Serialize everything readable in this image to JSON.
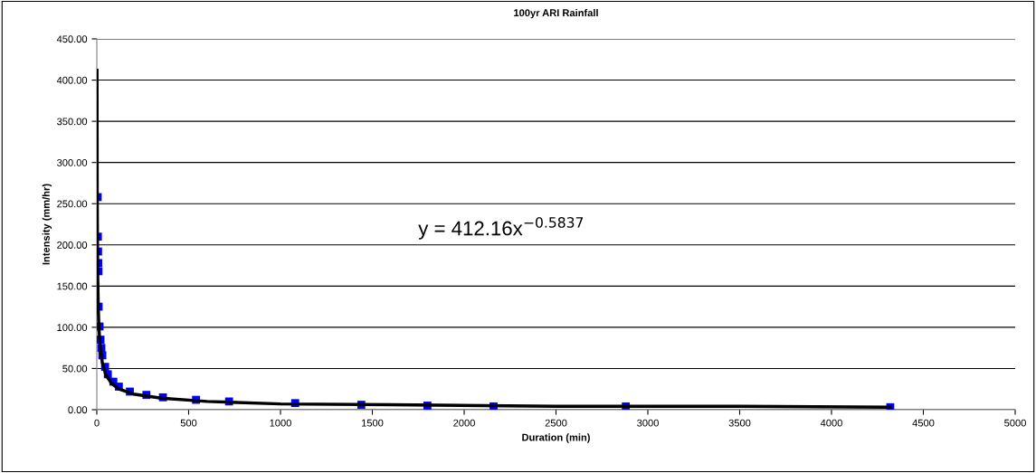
{
  "chart_data": {
    "type": "scatter",
    "title": "100yr ARI Rainfall",
    "xlabel": "Duration (min)",
    "ylabel": "Intensity (mm/hr)",
    "xlim": [
      0,
      5000
    ],
    "xticks": [
      0,
      500,
      1000,
      1500,
      2000,
      2500,
      3000,
      3500,
      4000,
      4500,
      5000
    ],
    "ylim": [
      0,
      450
    ],
    "yticks": [
      {
        "value": 0,
        "label": "0.00"
      },
      {
        "value": 50,
        "label": "50.00"
      },
      {
        "value": 100,
        "label": "100.00"
      },
      {
        "value": 150,
        "label": "150.00"
      },
      {
        "value": 200,
        "label": "200.00"
      },
      {
        "value": 250,
        "label": "250.00"
      },
      {
        "value": 300,
        "label": "300.00"
      },
      {
        "value": 350,
        "label": "350.00"
      },
      {
        "value": 400,
        "label": "400.00"
      },
      {
        "value": 450,
        "label": "450.00"
      }
    ],
    "grid": "y",
    "legend": false,
    "marker": "square",
    "annotations": [
      "y = 412.16x$^{−0.5837}$"
    ],
    "series": [
      {
        "color": "#0000ff",
        "x": [
          5,
          6,
          7,
          8,
          9,
          10,
          15,
          20,
          25,
          30,
          45,
          60,
          90,
          120,
          180,
          270,
          360,
          540,
          720,
          1080,
          1440,
          1800,
          2160,
          2880,
          4320
        ],
        "values": [
          258,
          210,
          192,
          178,
          168,
          125,
          101,
          85,
          75,
          66,
          52,
          43,
          34,
          28,
          22,
          18,
          15,
          12,
          10,
          8,
          6,
          5,
          4,
          4,
          3
        ]
      },
      {
        "type": "line",
        "color": "#000000",
        "marker": "none",
        "line_style": "solid",
        "x": [
          1,
          2,
          3,
          5,
          8,
          12,
          20,
          30,
          50,
          80,
          120,
          200,
          350,
          600,
          1000,
          1600,
          2500,
          3500,
          4320
        ],
        "values": [
          412,
          275,
          217,
          161,
          123,
          97,
          72,
          57,
          42,
          32,
          25,
          19,
          14,
          10,
          7,
          6,
          4,
          4,
          3
        ]
      }
    ]
  }
}
